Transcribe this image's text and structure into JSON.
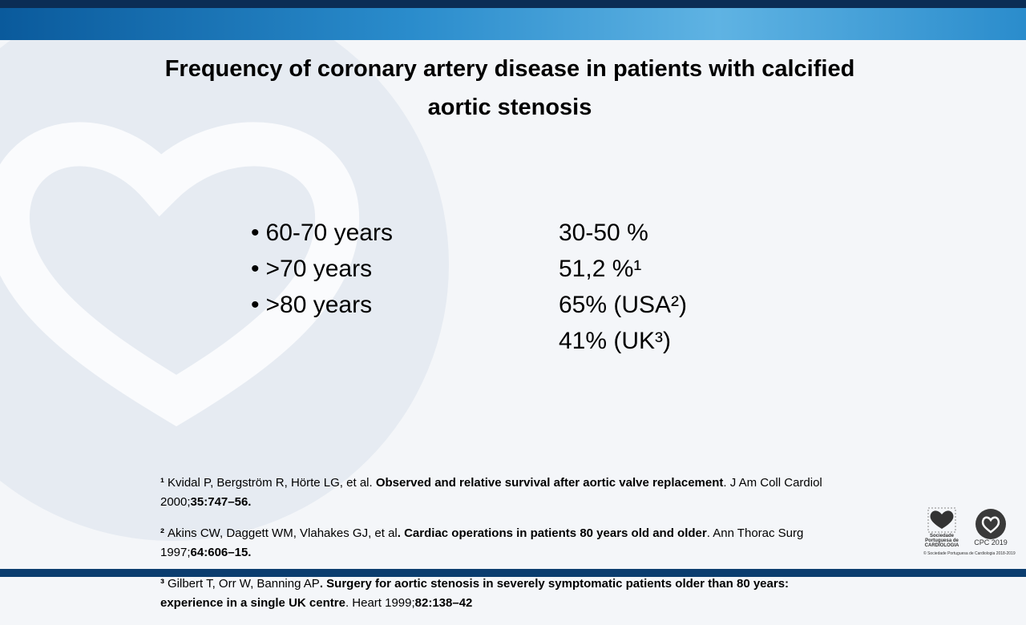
{
  "slide": {
    "title": "Frequency of coronary artery disease in patients with calcified aortic stenosis",
    "rows": [
      {
        "label": "60-70 years",
        "values": [
          "30-50 %"
        ]
      },
      {
        "label": ">70 years",
        "values": [
          "51,2 %¹"
        ]
      },
      {
        "label": ">80 years",
        "values": [
          "65% (USA²)",
          "41% (UK³)"
        ]
      }
    ],
    "references": [
      {
        "marker": "¹",
        "segments": [
          {
            "text": "Kvidal P, Bergström R, Hörte LG, et al. ",
            "bold": false
          },
          {
            "text": "Observed and relative survival after aortic valve replacement",
            "bold": true
          },
          {
            "text": ". J Am Coll Cardiol 2000;",
            "bold": false
          },
          {
            "text": "35:747–56.",
            "bold": true
          }
        ]
      },
      {
        "marker": "²",
        "segments": [
          {
            "text": "Akins CW, Daggett WM, Vlahakes GJ, et al",
            "bold": false
          },
          {
            "text": ". Cardiac operations in patients 80 years old and older",
            "bold": true
          },
          {
            "text": ". Ann Thorac Surg 1997;",
            "bold": false
          },
          {
            "text": "64:606–15.",
            "bold": true
          }
        ]
      },
      {
        "marker": "³",
        "segments": [
          {
            "text": "Gilbert T, Orr W, Banning AP",
            "bold": false
          },
          {
            "text": ". Surgery for aortic stenosis in severely symptomatic patients older than 80 years: experience in a single UK centre",
            "bold": true
          },
          {
            "text": ". Heart 1999;",
            "bold": false
          },
          {
            "text": "82:138–42",
            "bold": true
          }
        ]
      }
    ],
    "logos": {
      "society": "Sociedade Portuguesa de CARDIOLOGIA",
      "event": "CPC 2019",
      "copyright": "© Sociedade Portuguesa de Cardiologia 2018-2019"
    }
  }
}
